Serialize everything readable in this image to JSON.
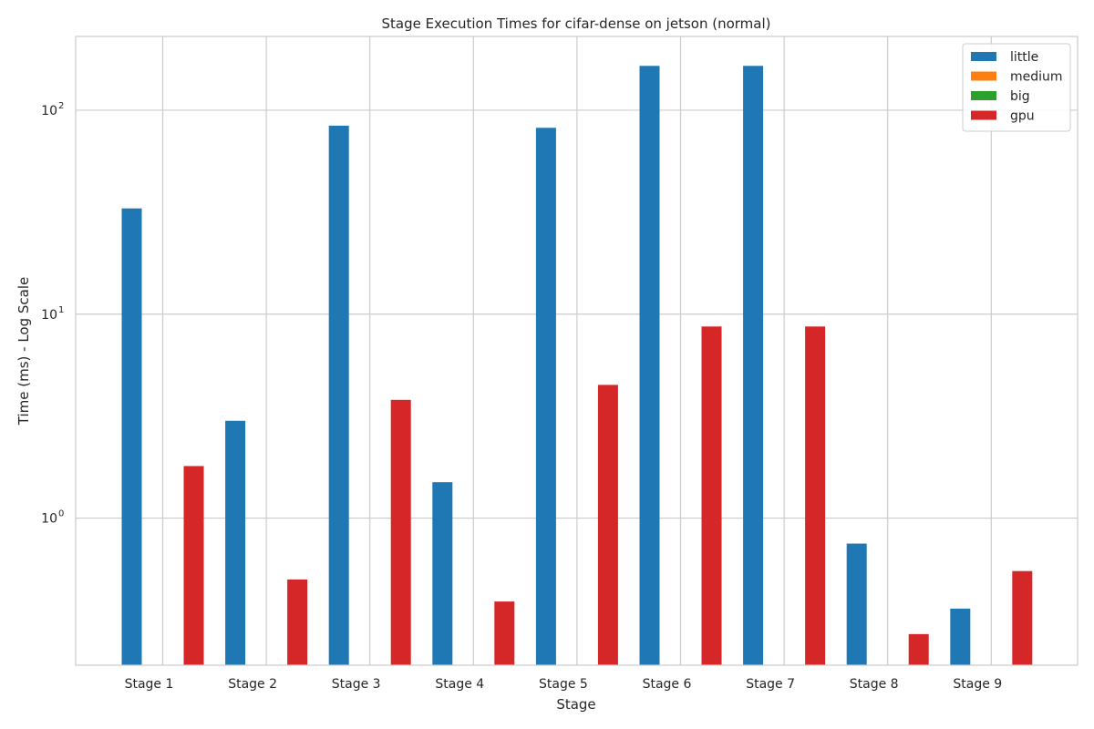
{
  "chart_data": {
    "type": "bar",
    "title": "Stage Execution Times for cifar-dense on jetson (normal)",
    "xlabel": "Stage",
    "ylabel": "Time (ms) - Log Scale",
    "yscale": "log",
    "ylim": [
      0.19,
      230
    ],
    "yticks": [
      {
        "value": 1,
        "base": "10",
        "exp": "0"
      },
      {
        "value": 10,
        "base": "10",
        "exp": "1"
      },
      {
        "value": 100,
        "base": "10",
        "exp": "2"
      }
    ],
    "grid": true,
    "legend_position": "top-right",
    "categories": [
      "Stage 1",
      "Stage 2",
      "Stage 3",
      "Stage 4",
      "Stage 5",
      "Stage 6",
      "Stage 7",
      "Stage 8",
      "Stage 9"
    ],
    "series": [
      {
        "name": "little",
        "color": "#1f77b4",
        "values": [
          33,
          3.0,
          84,
          1.5,
          82,
          165,
          165,
          0.75,
          0.36
        ]
      },
      {
        "name": "medium",
        "color": "#ff7f0e",
        "values": [
          null,
          null,
          null,
          null,
          null,
          null,
          null,
          null,
          null
        ]
      },
      {
        "name": "big",
        "color": "#2ca02c",
        "values": [
          null,
          null,
          null,
          null,
          null,
          null,
          null,
          null,
          null
        ]
      },
      {
        "name": "gpu",
        "color": "#d62728",
        "values": [
          1.8,
          0.5,
          3.8,
          0.39,
          4.5,
          8.7,
          8.7,
          0.27,
          0.55
        ]
      }
    ]
  }
}
